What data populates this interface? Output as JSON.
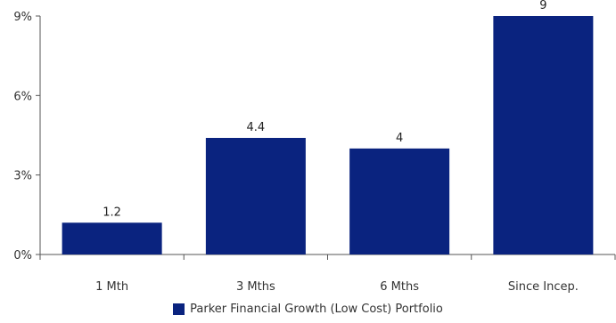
{
  "chart_data": {
    "type": "bar",
    "categories": [
      "1 Mth",
      "3 Mths",
      "6 Mths",
      "Since Incep."
    ],
    "series": [
      {
        "name": "Parker Financial Growth (Low Cost) Portfolio",
        "values": [
          1.2,
          4.4,
          4,
          9
        ],
        "value_labels": [
          "1.2",
          "4.4",
          "4",
          "9"
        ],
        "color": "#0a237f"
      }
    ],
    "yticks": [
      {
        "value": 0,
        "label": "0%"
      },
      {
        "value": 3,
        "label": "3%"
      },
      {
        "value": 6,
        "label": "6%"
      },
      {
        "value": 9,
        "label": "9%"
      }
    ],
    "ylim": [
      0,
      9
    ],
    "grid": false,
    "legend_position": "bottom-center"
  }
}
